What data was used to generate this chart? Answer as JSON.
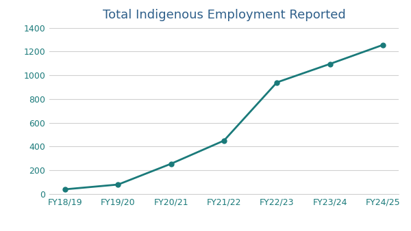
{
  "title": "Total Indigenous Employment Reported",
  "categories": [
    "FY18/19",
    "FY19/20",
    "FY20/21",
    "FY21/22",
    "FY22/23",
    "FY23/24",
    "FY24/25"
  ],
  "values": [
    40,
    80,
    255,
    450,
    940,
    1095,
    1255
  ],
  "line_color": "#1a7a7a",
  "marker_color": "#1a7a7a",
  "background_color": "#ffffff",
  "grid_color": "#d0d0d0",
  "title_color": "#2e5f8a",
  "tick_label_color": "#1a7a7a",
  "ylim": [
    0,
    1400
  ],
  "yticks": [
    0,
    200,
    400,
    600,
    800,
    1000,
    1200,
    1400
  ],
  "title_fontsize": 13,
  "tick_fontsize": 9,
  "line_width": 2.0,
  "marker_size": 5
}
